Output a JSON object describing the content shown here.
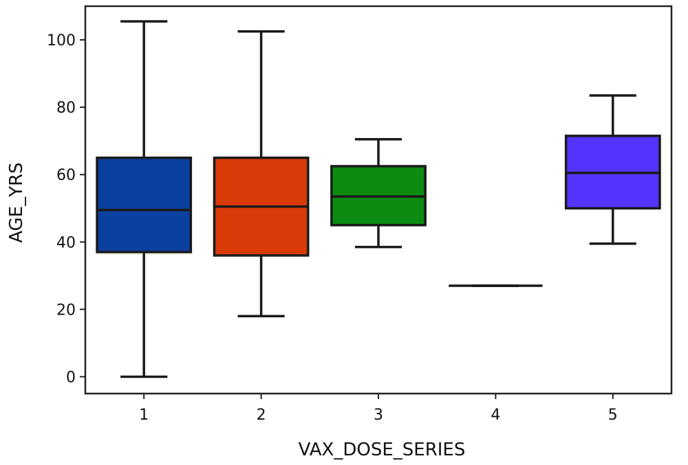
{
  "chart_data": {
    "type": "box",
    "title": "",
    "xlabel": "VAX_DOSE_SERIES",
    "ylabel": "AGE_YRS",
    "ylim": [
      -5,
      110
    ],
    "yticks": [
      0,
      20,
      40,
      60,
      80,
      100
    ],
    "grid": false,
    "categories": [
      "1",
      "2",
      "3",
      "4",
      "5"
    ],
    "boxes": [
      {
        "category": "1",
        "min": 0,
        "q1": 37,
        "median": 49.5,
        "q3": 65,
        "max": 105.5,
        "color": "#0b3fa0"
      },
      {
        "category": "2",
        "min": 18,
        "q1": 36,
        "median": 50.5,
        "q3": 65,
        "max": 102.5,
        "color": "#d83a08"
      },
      {
        "category": "3",
        "min": 38.5,
        "q1": 45,
        "median": 53.5,
        "q3": 62.5,
        "max": 70.5,
        "color": "#0d8a10"
      },
      {
        "category": "4",
        "min": 27,
        "q1": 27,
        "median": 27,
        "q3": 27,
        "max": 27,
        "color": "#888888"
      },
      {
        "category": "5",
        "min": 39.5,
        "q1": 50,
        "median": 60.5,
        "q3": 71.5,
        "max": 83.5,
        "color": "#5533ff"
      }
    ]
  }
}
